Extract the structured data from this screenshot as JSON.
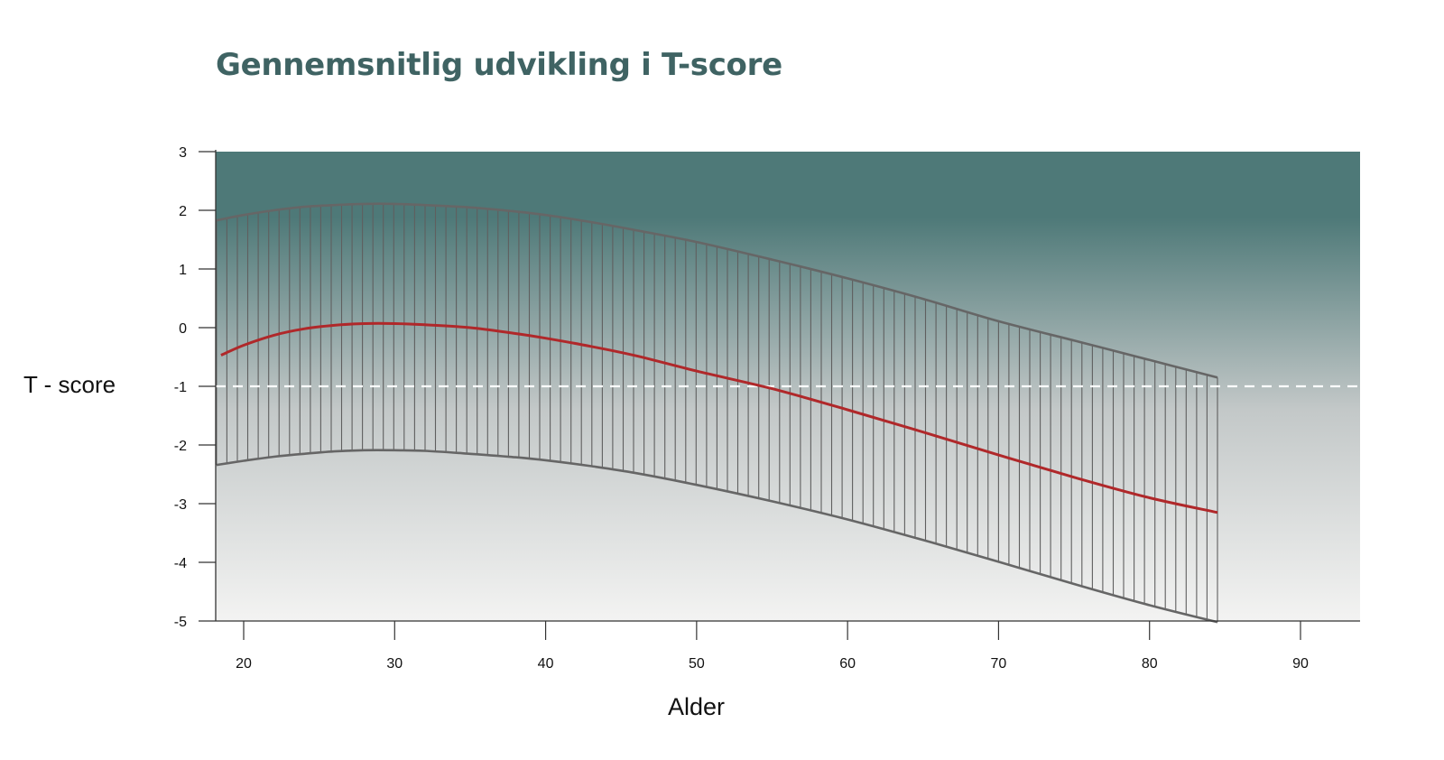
{
  "chart_data": {
    "type": "area",
    "title": "Gennemsnitlig udvikling i T-score",
    "xlabel": "Alder",
    "ylabel": "T - score",
    "xlim": [
      18.2,
      94
    ],
    "ylim": [
      -5,
      3
    ],
    "xticks": [
      20,
      30,
      40,
      50,
      60,
      70,
      80,
      90
    ],
    "yticks": [
      3,
      2,
      1,
      0,
      -1,
      -2,
      -3,
      -4,
      -5
    ],
    "threshold": {
      "y": -1,
      "style": "dashed",
      "color": "#ffffff"
    },
    "series": [
      {
        "role": "mean",
        "color": "#b0282a",
        "x": [
          18.5,
          20,
          22,
          24,
          26,
          28,
          30,
          32,
          35,
          38,
          40,
          43,
          46,
          50,
          55,
          60,
          65,
          70,
          75,
          80,
          84.5
        ],
        "y": [
          -0.47,
          -0.3,
          -0.13,
          -0.02,
          0.04,
          0.07,
          0.07,
          0.05,
          0.0,
          -0.1,
          -0.18,
          -0.32,
          -0.48,
          -0.74,
          -1.04,
          -1.4,
          -1.78,
          -2.17,
          -2.55,
          -2.9,
          -3.15
        ]
      },
      {
        "role": "upper-bound",
        "color": "#666666",
        "x": [
          18.2,
          20,
          22,
          24,
          26,
          28,
          30,
          32,
          35,
          38,
          40,
          43,
          46,
          50,
          55,
          60,
          65,
          70,
          75,
          80,
          84.5
        ],
        "y": [
          1.83,
          1.92,
          2.0,
          2.06,
          2.09,
          2.11,
          2.11,
          2.09,
          2.05,
          1.98,
          1.92,
          1.8,
          1.66,
          1.46,
          1.16,
          0.84,
          0.49,
          0.11,
          -0.22,
          -0.55,
          -0.85
        ]
      },
      {
        "role": "lower-bound",
        "color": "#666666",
        "x": [
          18.2,
          20,
          22,
          24,
          26,
          28,
          30,
          32,
          35,
          38,
          40,
          43,
          46,
          50,
          55,
          60,
          65,
          70,
          75,
          80,
          84.5
        ],
        "y": [
          -2.34,
          -2.27,
          -2.2,
          -2.15,
          -2.11,
          -2.09,
          -2.09,
          -2.1,
          -2.15,
          -2.21,
          -2.26,
          -2.36,
          -2.48,
          -2.68,
          -2.96,
          -3.27,
          -3.62,
          -3.99,
          -4.37,
          -4.73,
          -5.02
        ]
      }
    ],
    "colors": {
      "band_top": "#4e7978",
      "band_bottom": "#f3f3f2",
      "hatch": "#5f5f5f",
      "axis": "#333333"
    }
  }
}
